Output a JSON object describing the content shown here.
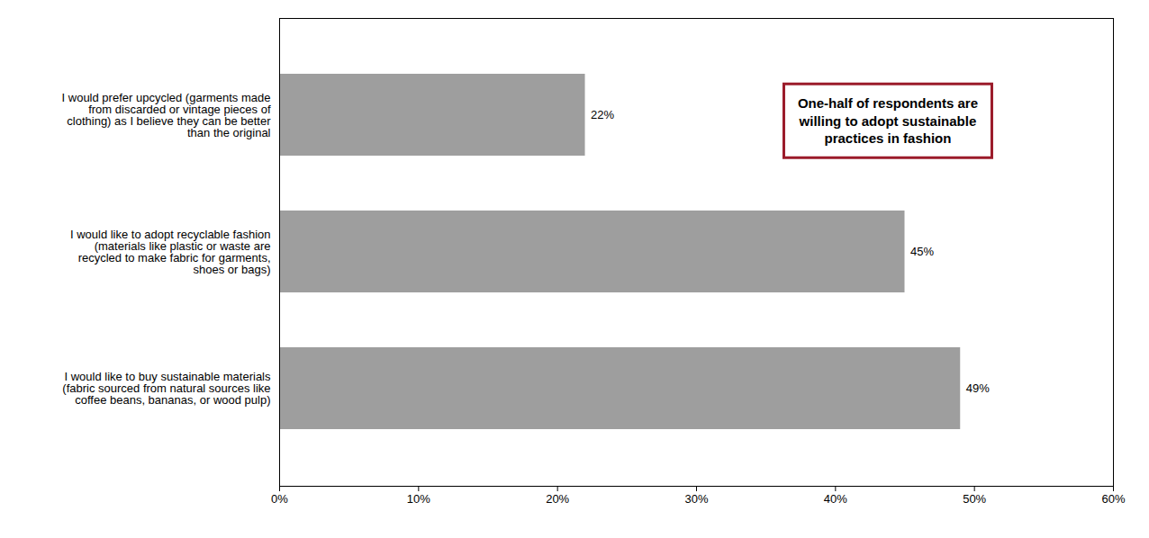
{
  "chart_data": {
    "type": "bar",
    "orientation": "horizontal",
    "categories": [
      "I would like to buy sustainable materials\n(fabric sourced from natural sources like\ncoffee beans, bananas, or wood pulp)",
      "I would like to adopt recyclable fashion\n(materials like plastic or waste are\nrecycled to make fabric for garments,\nshoes or bags)",
      "I would prefer upcycled (garments made\nfrom discarded or vintage pieces of\nclothing) as I believe they can be better\nthan the original"
    ],
    "values": [
      49,
      45,
      22
    ],
    "value_labels": [
      "49%",
      "45%",
      "22%"
    ],
    "data_labels": true,
    "color": "#9e9e9e",
    "xlim": [
      0,
      60
    ],
    "xticks": [
      {
        "value": 0,
        "label": "0%"
      },
      {
        "value": 10,
        "label": "10%"
      },
      {
        "value": 20,
        "label": "20%"
      },
      {
        "value": 30,
        "label": "30%"
      },
      {
        "value": 40,
        "label": "40%"
      },
      {
        "value": 50,
        "label": "50%"
      },
      {
        "value": 60,
        "label": "60%"
      }
    ],
    "grid": false,
    "annotations": [
      {
        "text": "One-half of respondents are\nwilling to adopt sustainable\npractices in fashion",
        "color": "#9b1b2a"
      }
    ]
  }
}
